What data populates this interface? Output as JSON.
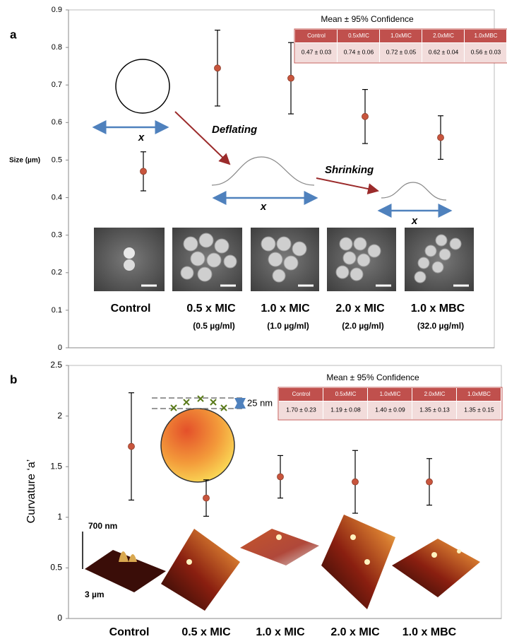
{
  "chart_data": [
    {
      "type": "errorbar",
      "panel_label": "a",
      "y_label": "Size (µm)",
      "ylim": [
        0,
        0.9
      ],
      "yticks": [
        0,
        0.1,
        0.2,
        0.3,
        0.4,
        0.5,
        0.6,
        0.7,
        0.8,
        0.9
      ],
      "categories": [
        "Control",
        "0.5 x MIC",
        "1.0 x MIC",
        "2.0 x MIC",
        "1.0 x MBC"
      ],
      "concentrations": [
        "(0.5 µg/ml)",
        "(1.0 µg/ml)",
        "(2.0 µg/ml)",
        "(32.0 µg/ml)"
      ],
      "values": [
        0.47,
        0.745,
        0.718,
        0.616,
        0.56
      ],
      "errors": [
        0.052,
        0.101,
        0.095,
        0.072,
        0.058
      ],
      "color": "#c8553d",
      "table": {
        "title": "Mean ± 95% Confidence",
        "header": [
          "Control",
          "0.5xMIC",
          "1.0xMIC",
          "2.0xMIC",
          "1.0xMBC"
        ],
        "row": [
          "0.47 ± 0.03",
          "0.74 ± 0.06",
          "0.72 ± 0.05",
          "0.62 ± 0.04",
          "0.56 ± 0.03"
        ]
      },
      "annotations": {
        "width_1": "x",
        "deflating": "Deflating",
        "width_2": "x",
        "shrinking": "Shrinking",
        "width_3": "x"
      }
    },
    {
      "type": "errorbar",
      "panel_label": "b",
      "y_label": "Curvature ‘a’",
      "ylim": [
        0,
        2.5
      ],
      "yticks": [
        0,
        0.5,
        1,
        1.5,
        2,
        2.5
      ],
      "categories": [
        "Control",
        "0.5 x MIC",
        "1.0 x MIC",
        "2.0 x MIC",
        "1.0 x MBC"
      ],
      "values": [
        1.7,
        1.19,
        1.4,
        1.35,
        1.35
      ],
      "errors": [
        0.53,
        0.18,
        0.21,
        0.31,
        0.23
      ],
      "color": "#c8553d",
      "table": {
        "title": "Mean ± 95% Confidence",
        "header": [
          "Control",
          "0.5xMIC",
          "1.0xMIC",
          "2.0xMIC",
          "1.0xMBC"
        ],
        "row": [
          "1.70 ± 0.23",
          "1.19 ± 0.08",
          "1.40 ± 0.09",
          "1.35 ± 0.13",
          "1.35 ± 0.15"
        ]
      },
      "annotations": {
        "step": "25 nm",
        "height_scale": "700 nm",
        "lateral_scale": "3 µm"
      }
    }
  ]
}
